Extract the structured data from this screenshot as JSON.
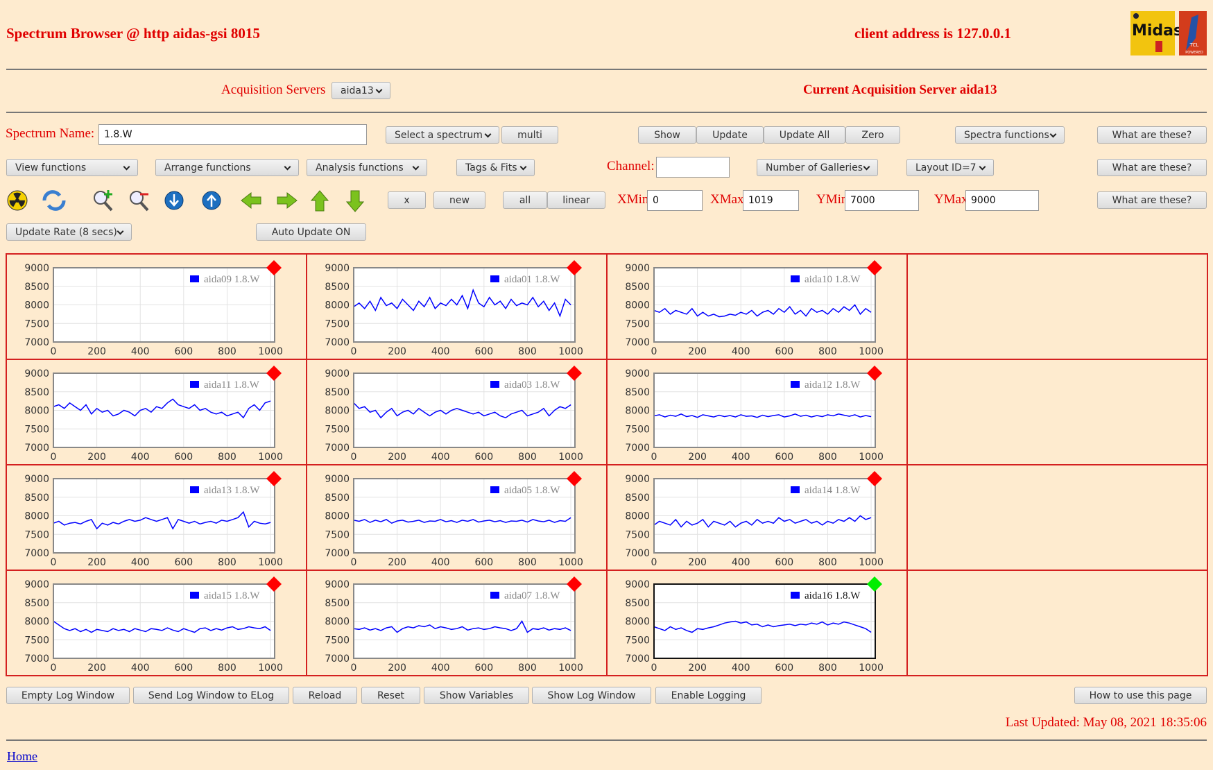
{
  "header": {
    "title": "Spectrum Browser @ http aidas-gsi 8015",
    "client": "client address is 127.0.0.1",
    "midas": "Midas",
    "tcl": "TCL",
    "powered": "POWERED"
  },
  "servers": {
    "label": "Acquisition Servers",
    "selected": "aida13",
    "current": "Current Acquisition Server aida13"
  },
  "row1": {
    "spectrum_label": "Spectrum Name:",
    "spectrum_value": "1.8.W",
    "select": "Select a spectrum",
    "multi": "multi",
    "show": "Show",
    "update": "Update",
    "update_all": "Update All",
    "zero": "Zero",
    "spectra_functions": "Spectra functions",
    "help": "What are these?"
  },
  "row2": {
    "view": "View functions",
    "arrange": "Arrange functions",
    "analysis": "Analysis functions",
    "tags": "Tags & Fits",
    "channel_label": "Channel:",
    "galleries": "Number of Galleries",
    "layout": "Layout ID=7",
    "help": "What are these?"
  },
  "row3": {
    "x": "x",
    "new": "new",
    "all": "all",
    "linear": "linear",
    "xmin_label": "XMin",
    "xmin": 0,
    "xmax_label": "XMax",
    "xmax": 1019,
    "ymin_label": "YMin",
    "ymin": 7000,
    "ymax_label": "YMax",
    "ymax": 9000,
    "help": "What are these?"
  },
  "row4": {
    "update_rate": "Update Rate (8 secs)",
    "auto_update": "Auto Update ON"
  },
  "galleries": {
    "type": "line",
    "xlim": [
      0,
      1019
    ],
    "xticks": [
      0,
      200,
      400,
      600,
      800,
      1000
    ],
    "ylim": [
      7000,
      9000
    ],
    "yticks": [
      7000,
      7500,
      8000,
      8500,
      9000
    ],
    "grid": true,
    "line_color": "#0000ff",
    "x": [
      0,
      25,
      50,
      75,
      100,
      125,
      150,
      175,
      200,
      225,
      250,
      275,
      300,
      325,
      350,
      375,
      400,
      425,
      450,
      475,
      500,
      525,
      550,
      575,
      600,
      625,
      650,
      675,
      700,
      725,
      750,
      775,
      800,
      825,
      850,
      875,
      900,
      925,
      950,
      975,
      1000
    ],
    "panels": [
      {
        "legend": "aida09 1.8.W",
        "status_color": "#ff0000",
        "active": false,
        "values": []
      },
      {
        "legend": "aida01 1.8.W",
        "status_color": "#ff0000",
        "active": false,
        "values": [
          7950,
          8050,
          7900,
          8100,
          7850,
          8200,
          7980,
          8050,
          7900,
          8150,
          8000,
          7850,
          8100,
          7950,
          8200,
          7900,
          8050,
          7980,
          8150,
          8000,
          8250,
          7900,
          8400,
          8050,
          7950,
          8200,
          8000,
          8100,
          7900,
          8150,
          7980,
          8050,
          8000,
          8200,
          7950,
          8100,
          7850,
          8050,
          7700,
          8150,
          8000
        ]
      },
      {
        "legend": "aida10 1.8.W",
        "status_color": "#ff0000",
        "active": false,
        "values": [
          7850,
          7800,
          7900,
          7750,
          7850,
          7800,
          7750,
          7900,
          7700,
          7800,
          7700,
          7750,
          7680,
          7700,
          7750,
          7720,
          7800,
          7750,
          7850,
          7700,
          7800,
          7850,
          7750,
          7900,
          7800,
          7950,
          7750,
          7850,
          7700,
          7900,
          7800,
          7850,
          7750,
          7900,
          7800,
          7950,
          7850,
          8000,
          7750,
          7900,
          7800
        ]
      },
      {
        "legend": "aida11 1.8.W",
        "status_color": "#ff0000",
        "active": false,
        "values": [
          8100,
          8150,
          8050,
          8200,
          8100,
          8000,
          8150,
          7900,
          8050,
          7950,
          8000,
          7850,
          7900,
          8000,
          7950,
          7850,
          8000,
          8050,
          7950,
          8100,
          8050,
          8200,
          8300,
          8150,
          8100,
          8050,
          8150,
          8000,
          8050,
          7950,
          7900,
          7950,
          7850,
          7900,
          7950,
          7800,
          8050,
          8150,
          8000,
          8200,
          8250
        ]
      },
      {
        "legend": "aida03 1.8.W",
        "status_color": "#ff0000",
        "active": false,
        "values": [
          8200,
          8050,
          8100,
          7950,
          8000,
          7800,
          7950,
          8050,
          7850,
          7950,
          8000,
          7900,
          8050,
          7950,
          7850,
          7950,
          8000,
          7900,
          8000,
          8050,
          8000,
          7950,
          7900,
          7950,
          7850,
          7900,
          7950,
          7850,
          7800,
          7900,
          7950,
          8000,
          7850,
          7900,
          7950,
          8050,
          7850,
          8000,
          8100,
          8050,
          8150
        ]
      },
      {
        "legend": "aida12 1.8.W",
        "status_color": "#ff0000",
        "active": false,
        "values": [
          7850,
          7880,
          7820,
          7870,
          7840,
          7900,
          7830,
          7860,
          7810,
          7880,
          7850,
          7820,
          7870,
          7830,
          7860,
          7820,
          7880,
          7840,
          7850,
          7810,
          7870,
          7830,
          7860,
          7880,
          7820,
          7850,
          7900,
          7840,
          7870,
          7820,
          7860,
          7830,
          7880,
          7850,
          7900,
          7870,
          7840,
          7880,
          7820,
          7860,
          7830
        ]
      },
      {
        "legend": "aida13 1.8.W",
        "status_color": "#ff0000",
        "active": false,
        "values": [
          7800,
          7850,
          7750,
          7800,
          7820,
          7780,
          7850,
          7900,
          7650,
          7800,
          7750,
          7820,
          7780,
          7850,
          7900,
          7850,
          7880,
          7950,
          7900,
          7850,
          7900,
          7950,
          7650,
          7900,
          7850,
          7800,
          7850,
          7780,
          7820,
          7850,
          7800,
          7880,
          7850,
          7900,
          7950,
          8100,
          7700,
          7850,
          7800,
          7780,
          7820
        ]
      },
      {
        "legend": "aida05 1.8.W",
        "status_color": "#ff0000",
        "active": false,
        "values": [
          7880,
          7850,
          7900,
          7820,
          7880,
          7840,
          7900,
          7800,
          7860,
          7880,
          7830,
          7850,
          7880,
          7820,
          7860,
          7850,
          7900,
          7840,
          7870,
          7820,
          7880,
          7850,
          7900,
          7830,
          7860,
          7880,
          7840,
          7870,
          7820,
          7860,
          7850,
          7880,
          7830,
          7900,
          7860,
          7840,
          7880,
          7820,
          7870,
          7850,
          7950
        ]
      },
      {
        "legend": "aida14 1.8.W",
        "status_color": "#ff0000",
        "active": false,
        "values": [
          7750,
          7850,
          7800,
          7750,
          7900,
          7700,
          7850,
          7750,
          7800,
          7900,
          7700,
          7850,
          7800,
          7750,
          7850,
          7700,
          7800,
          7850,
          7750,
          7900,
          7800,
          7850,
          7800,
          7950,
          7850,
          7900,
          7800,
          7850,
          7900,
          7800,
          7850,
          7750,
          7850,
          7800,
          7900,
          7850,
          7950,
          7850,
          8000,
          7900,
          7950
        ]
      },
      {
        "legend": "aida15 1.8.W",
        "status_color": "#ff0000",
        "active": false,
        "values": [
          8000,
          7900,
          7800,
          7750,
          7800,
          7720,
          7780,
          7700,
          7780,
          7750,
          7720,
          7800,
          7750,
          7780,
          7720,
          7800,
          7760,
          7720,
          7800,
          7780,
          7750,
          7820,
          7760,
          7720,
          7800,
          7750,
          7700,
          7800,
          7820,
          7750,
          7800,
          7760,
          7820,
          7850,
          7780,
          7800,
          7850,
          7820,
          7800,
          7850,
          7750
        ]
      },
      {
        "legend": "aida07 1.8.W",
        "status_color": "#ff0000",
        "active": false,
        "values": [
          7800,
          7780,
          7820,
          7760,
          7800,
          7750,
          7820,
          7850,
          7700,
          7800,
          7850,
          7820,
          7880,
          7850,
          7900,
          7800,
          7850,
          7820,
          7780,
          7800,
          7850,
          7760,
          7800,
          7820,
          7780,
          7800,
          7850,
          7820,
          7800,
          7750,
          7800,
          8000,
          7700,
          7800,
          7780,
          7820,
          7760,
          7800,
          7780,
          7820,
          7750
        ]
      },
      {
        "legend": "aida16 1.8.W",
        "status_color": "#00ee00",
        "active": true,
        "values": [
          7850,
          7800,
          7750,
          7850,
          7780,
          7820,
          7750,
          7700,
          7800,
          7780,
          7820,
          7850,
          7900,
          7950,
          7980,
          8000,
          7950,
          7980,
          7900,
          7920,
          7850,
          7900,
          7850,
          7880,
          7900,
          7920,
          7880,
          7920,
          7900,
          7950,
          7920,
          7980,
          7900,
          7950,
          7920,
          7980,
          7950,
          7900,
          7850,
          7800,
          7700
        ]
      }
    ]
  },
  "footer": {
    "buttons": [
      "Empty Log Window",
      "Send Log Window to ELog",
      "Reload",
      "Reset",
      "Show Variables",
      "Show Log Window",
      "Enable Logging"
    ],
    "help": "How to use this page",
    "last_updated": "Last Updated: May 08, 2021 18:35:06",
    "home": "Home"
  }
}
